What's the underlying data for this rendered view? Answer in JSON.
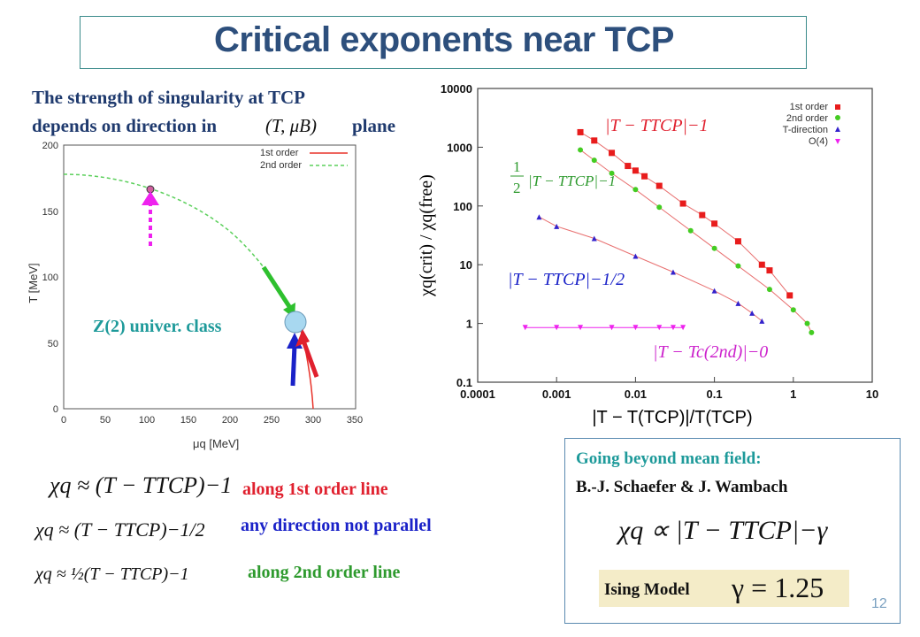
{
  "slide": {
    "title": "Critical exponents near TCP",
    "page_number": "12"
  },
  "intro": {
    "line1": "The strength of singularity at TCP",
    "line2_prefix": "depends on direction in",
    "line2_math": "(T, μB)",
    "line2_suffix": "plane"
  },
  "phase_diagram": {
    "xlabel": "μq [MeV]",
    "ylabel": "T [MeV]",
    "x_ticks": [
      "0",
      "50",
      "100",
      "150",
      "200",
      "250",
      "300",
      "350"
    ],
    "y_ticks": [
      "0",
      "50",
      "100",
      "150",
      "200"
    ],
    "legend": [
      "1st order",
      "2nd order"
    ],
    "z2_label": "Z(2) univer.  class",
    "colors": {
      "first_order": "#e8332a",
      "second_order": "#5cd05c",
      "arrow_magenta": "#ee22ee",
      "arrow_green": "#2ec02e",
      "arrow_blue": "#1a22c8",
      "arrow_red": "#e0202e",
      "tcp": "#a8d8f0"
    }
  },
  "loglog_plot": {
    "xlabel": "|T − T(TCP)|/T(TCP)",
    "ylabel": "χq(crit) / χq(free)",
    "x_ticks": [
      "0.0001",
      "0.001",
      "0.01",
      "0.1",
      "1",
      "10"
    ],
    "y_ticks": [
      "0.1",
      "1",
      "10",
      "100",
      "1000",
      "10000"
    ],
    "legend": [
      "1st order",
      "2nd order",
      "T-direction",
      "O(4)"
    ],
    "legend_colors": [
      "#e81c1c",
      "#44cc22",
      "#3322cc",
      "#ee22ee"
    ],
    "ann_first": "|T − TTCP|−1",
    "ann_second_num": "1",
    "ann_second_den": "2",
    "ann_second": "|T − TTCP|−1",
    "ann_tdir": "|T − TTCP|−1/2",
    "ann_o4": "|T − Tc(2nd)|−0"
  },
  "chart_data": {
    "type": "scatter",
    "xlabel": "|T − T(TCP)|/T(TCP)",
    "ylabel": "χq(crit) / χq(free)",
    "log_x": true,
    "log_y": true,
    "xlim": [
      0.0001,
      10
    ],
    "ylim": [
      0.1,
      10000
    ],
    "series": [
      {
        "name": "1st order",
        "x": [
          0.002,
          0.003,
          0.005,
          0.008,
          0.01,
          0.013,
          0.02,
          0.04,
          0.07,
          0.1,
          0.2,
          0.4,
          0.5,
          0.9
        ],
        "y": [
          1800,
          1300,
          800,
          480,
          400,
          320,
          220,
          110,
          70,
          50,
          25,
          10,
          8,
          3
        ]
      },
      {
        "name": "2nd order",
        "x": [
          0.002,
          0.003,
          0.005,
          0.01,
          0.02,
          0.05,
          0.1,
          0.2,
          0.5,
          1.0,
          1.5,
          1.7
        ],
        "y": [
          900,
          600,
          360,
          190,
          95,
          38,
          19,
          9.5,
          3.8,
          1.7,
          1.0,
          0.7
        ]
      },
      {
        "name": "T-direction",
        "x": [
          0.0006,
          0.001,
          0.003,
          0.01,
          0.03,
          0.1,
          0.2,
          0.3,
          0.4
        ],
        "y": [
          65,
          45,
          28,
          14,
          7.5,
          3.6,
          2.2,
          1.5,
          1.1
        ]
      },
      {
        "name": "O(4)",
        "x": [
          0.0004,
          0.001,
          0.002,
          0.005,
          0.01,
          0.02,
          0.03,
          0.04
        ],
        "y": [
          0.85,
          0.85,
          0.85,
          0.85,
          0.85,
          0.85,
          0.85,
          0.85
        ]
      }
    ]
  },
  "equations": [
    {
      "lhs": "χq ≈ (T − TTCP)−1",
      "note": "along 1st order line"
    },
    {
      "lhs": "χq ≈ (T − TTCP)−1/2",
      "note": "any direction not parallel"
    },
    {
      "lhs": "χq ≈ ½(T − TTCP)−1",
      "note": "along 2nd order line"
    }
  ],
  "beyond": {
    "heading": "Going beyond mean field:",
    "authors": "B.-J. Schaefer & J. Wambach",
    "formula": "χq ∝ |T − TTCP|−γ",
    "ising_label": "Ising Model",
    "gamma_eq": "γ = 1.25"
  }
}
